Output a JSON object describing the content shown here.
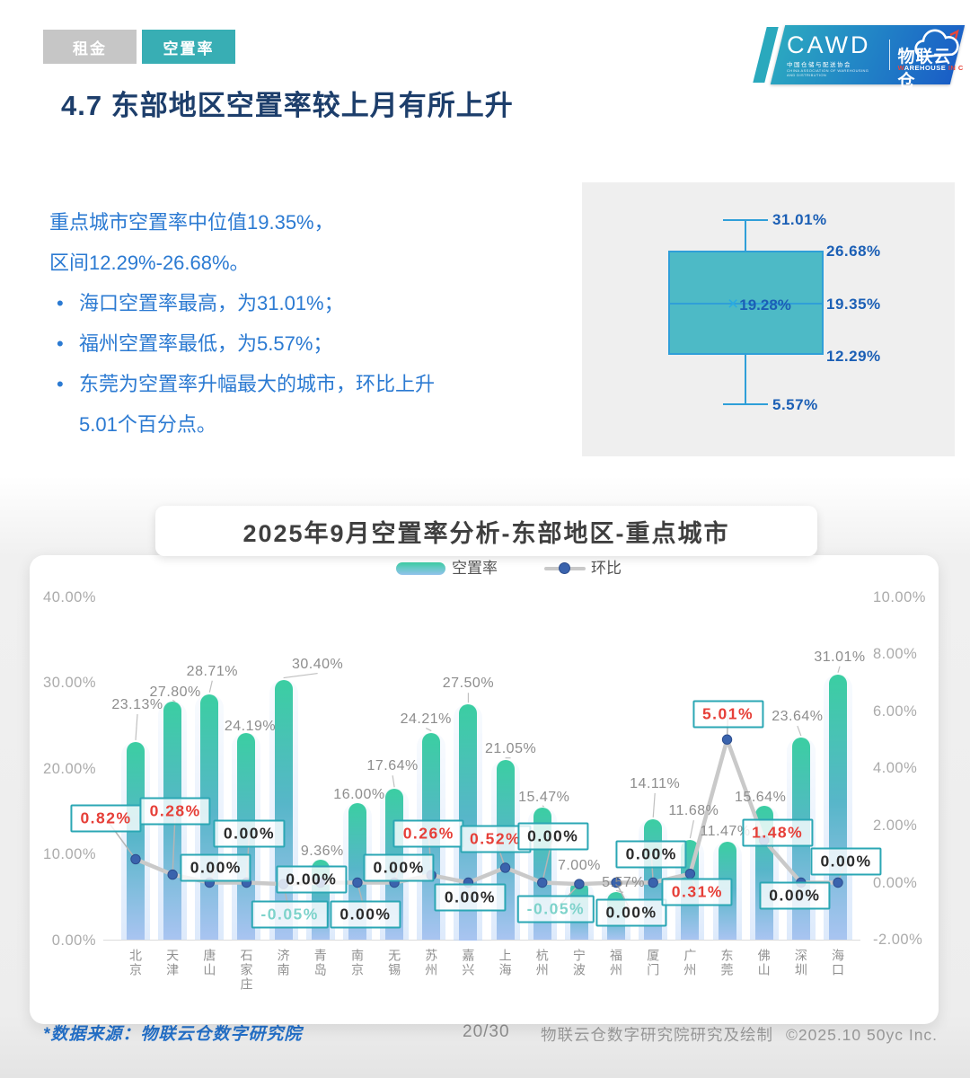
{
  "tabs": {
    "rent": "租金",
    "vacancy": "空置率"
  },
  "logo": {
    "cawd": "CAWD",
    "cawd_sub": "中国仓储与配送协会",
    "cawd_sub2": "CHINA ASSOCIATION OF WAREHOUSING AND DISTRIBUTION",
    "brand": "物联云仓",
    "brand_sub_parts": [
      {
        "t": "W",
        "red": true
      },
      {
        "t": "AREHOUSE",
        "red": false
      },
      {
        "t": " ",
        "red": false
      },
      {
        "t": "IN",
        "red": true
      },
      {
        "t": " ",
        "red": false
      },
      {
        "t": "C",
        "red": true
      },
      {
        "t": "LOUD",
        "red": false
      }
    ]
  },
  "title": "4.7 东部地区空置率较上月有所上升",
  "summary": {
    "line1": "重点城市空置率中位值19.35%，",
    "line2": "区间12.29%-26.68%。",
    "bullet_mark": "•",
    "bullets": [
      "海口空置率最高，为31.01%；",
      "福州空置率最低，为5.57%；",
      "东莞为空置率升幅最大的城市，环比上升5.01个百分点。"
    ]
  },
  "boxplot": {
    "whisker_high": "31.01%",
    "q3": "26.68%",
    "median": "19.35%",
    "mean_marker": "×",
    "mean": "19.28%",
    "q1": "12.29%",
    "whisker_low": "5.57%"
  },
  "chart_title": "2025年9月空置率分析-东部地区-重点城市",
  "legend": {
    "bar": "空置率",
    "line": "环比"
  },
  "chart_data": {
    "type": "bar",
    "title": "2025年9月空置率分析-东部地区-重点城市",
    "categories": [
      "北京",
      "天津",
      "唐山",
      "石家庄",
      "济南",
      "青岛",
      "南京",
      "无锡",
      "苏州",
      "嘉兴",
      "上海",
      "杭州",
      "宁波",
      "福州",
      "厦门",
      "广州",
      "东莞",
      "佛山",
      "深圳",
      "海口"
    ],
    "series": [
      {
        "name": "空置率",
        "type": "bar",
        "axis": "left",
        "unit": "%",
        "values": [
          23.13,
          27.8,
          28.71,
          24.19,
          30.4,
          9.36,
          16.0,
          17.64,
          24.21,
          27.5,
          21.05,
          15.47,
          7.0,
          5.57,
          14.11,
          11.68,
          11.47,
          15.64,
          23.64,
          31.01
        ]
      },
      {
        "name": "环比",
        "type": "line",
        "axis": "right",
        "unit": "%",
        "values": [
          0.82,
          0.28,
          0.0,
          0.0,
          -0.05,
          0.0,
          0.0,
          0.0,
          0.26,
          0.0,
          0.52,
          0.0,
          -0.05,
          0.0,
          0.0,
          0.31,
          5.01,
          1.48,
          0.0,
          0.0
        ]
      }
    ],
    "left_axis": {
      "ticks": [
        "40.00%",
        "30.00%",
        "20.00%",
        "10.00%",
        "0.00%"
      ],
      "min": 0,
      "max": 40
    },
    "right_axis": {
      "ticks": [
        "10.00%",
        "8.00%",
        "6.00%",
        "4.00%",
        "2.00%",
        "0.00%",
        "-2.00%"
      ],
      "min": -2,
      "max": 10
    },
    "grid": false,
    "legend_position": "top"
  },
  "colors": {
    "accent_teal": "#38aeb4",
    "title_navy": "#1d3e6b",
    "body_blue": "#2b7ad2",
    "bar_top": "#3bcea2",
    "bar_bottom": "#a9c4f1",
    "line_gray": "#c9c9c9",
    "dot_blue": "#3a63ad",
    "label_positive_red": "#e63f38",
    "label_negative_teal": "#7ed3cb",
    "box_fill": "#4dbac6",
    "box_border": "#2f9fd8"
  },
  "footer": {
    "source": "*数据来源：物联云仓数字研究院",
    "page": "20/30",
    "credit": "物联云仓数字研究院研究及绘制",
    "copyright": "©2025.10 50yc Inc."
  }
}
